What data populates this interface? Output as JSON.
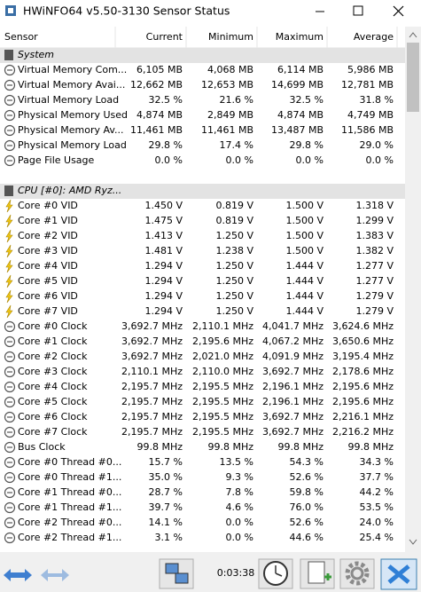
{
  "window": {
    "title": "HWiNFO64 v5.50-3130 Sensor Status"
  },
  "columns": [
    "Sensor",
    "Current",
    "Minimum",
    "Maximum",
    "Average"
  ],
  "groups": [
    {
      "title": "System",
      "rows": [
        [
          "Virtual Memory Com...",
          "6,105 MB",
          "4,068 MB",
          "6,114 MB",
          "5,986 MB"
        ],
        [
          "Virtual Memory Avai...",
          "12,662 MB",
          "12,653 MB",
          "14,699 MB",
          "12,781 MB"
        ],
        [
          "Virtual Memory Load",
          "32.5 %",
          "21.6 %",
          "32.5 %",
          "31.8 %"
        ],
        [
          "Physical Memory Used",
          "4,874 MB",
          "2,849 MB",
          "4,874 MB",
          "4,749 MB"
        ],
        [
          "Physical Memory Av...",
          "11,461 MB",
          "11,461 MB",
          "13,487 MB",
          "11,586 MB"
        ],
        [
          "Physical Memory Load",
          "29.8 %",
          "17.4 %",
          "29.8 %",
          "29.0 %"
        ],
        [
          "Page File Usage",
          "0.0 %",
          "0.0 %",
          "0.0 %",
          "0.0 %"
        ]
      ]
    },
    {
      "title": "CPU [#0]: AMD Ryz...",
      "rows": [
        [
          "Core #0 VID",
          "1.450 V",
          "0.819 V",
          "1.500 V",
          "1.318 V"
        ],
        [
          "Core #1 VID",
          "1.475 V",
          "0.819 V",
          "1.500 V",
          "1.299 V"
        ],
        [
          "Core #2 VID",
          "1.413 V",
          "1.250 V",
          "1.500 V",
          "1.383 V"
        ],
        [
          "Core #3 VID",
          "1.481 V",
          "1.238 V",
          "1.500 V",
          "1.382 V"
        ],
        [
          "Core #4 VID",
          "1.294 V",
          "1.250 V",
          "1.444 V",
          "1.277 V"
        ],
        [
          "Core #5 VID",
          "1.294 V",
          "1.250 V",
          "1.444 V",
          "1.277 V"
        ],
        [
          "Core #6 VID",
          "1.294 V",
          "1.250 V",
          "1.444 V",
          "1.279 V"
        ],
        [
          "Core #7 VID",
          "1.294 V",
          "1.250 V",
          "1.444 V",
          "1.279 V"
        ],
        [
          "Core #0 Clock",
          "3,692.7 MHz",
          "2,110.1 MHz",
          "4,041.7 MHz",
          "3,624.6 MHz"
        ],
        [
          "Core #1 Clock",
          "3,692.7 MHz",
          "2,195.6 MHz",
          "4,067.2 MHz",
          "3,650.6 MHz"
        ],
        [
          "Core #2 Clock",
          "3,692.7 MHz",
          "2,021.0 MHz",
          "4,091.9 MHz",
          "3,195.4 MHz"
        ],
        [
          "Core #3 Clock",
          "2,110.1 MHz",
          "2,110.0 MHz",
          "3,692.7 MHz",
          "2,178.6 MHz"
        ],
        [
          "Core #4 Clock",
          "2,195.7 MHz",
          "2,195.5 MHz",
          "2,196.1 MHz",
          "2,195.6 MHz"
        ],
        [
          "Core #5 Clock",
          "2,195.7 MHz",
          "2,195.5 MHz",
          "2,196.1 MHz",
          "2,195.6 MHz"
        ],
        [
          "Core #6 Clock",
          "2,195.7 MHz",
          "2,195.5 MHz",
          "3,692.7 MHz",
          "2,216.1 MHz"
        ],
        [
          "Core #7 Clock",
          "2,195.7 MHz",
          "2,195.5 MHz",
          "3,692.7 MHz",
          "2,216.2 MHz"
        ],
        [
          "Bus Clock",
          "99.8 MHz",
          "99.8 MHz",
          "99.8 MHz",
          "99.8 MHz"
        ],
        [
          "Core #0 Thread #0...",
          "15.7 %",
          "13.5 %",
          "54.3 %",
          "34.3 %"
        ],
        [
          "Core #0 Thread #1...",
          "35.0 %",
          "9.3 %",
          "52.6 %",
          "37.7 %"
        ],
        [
          "Core #1 Thread #0...",
          "28.7 %",
          "7.8 %",
          "59.8 %",
          "44.2 %"
        ],
        [
          "Core #1 Thread #1...",
          "39.7 %",
          "4.6 %",
          "76.0 %",
          "53.5 %"
        ],
        [
          "Core #2 Thread #0...",
          "14.1 %",
          "0.0 %",
          "52.6 %",
          "24.0 %"
        ],
        [
          "Core #2 Thread #1...",
          "3.1 %",
          "0.0 %",
          "44.6 %",
          "25.4 %"
        ]
      ]
    }
  ],
  "toolbar": {
    "elapsed": "0:03:38"
  }
}
